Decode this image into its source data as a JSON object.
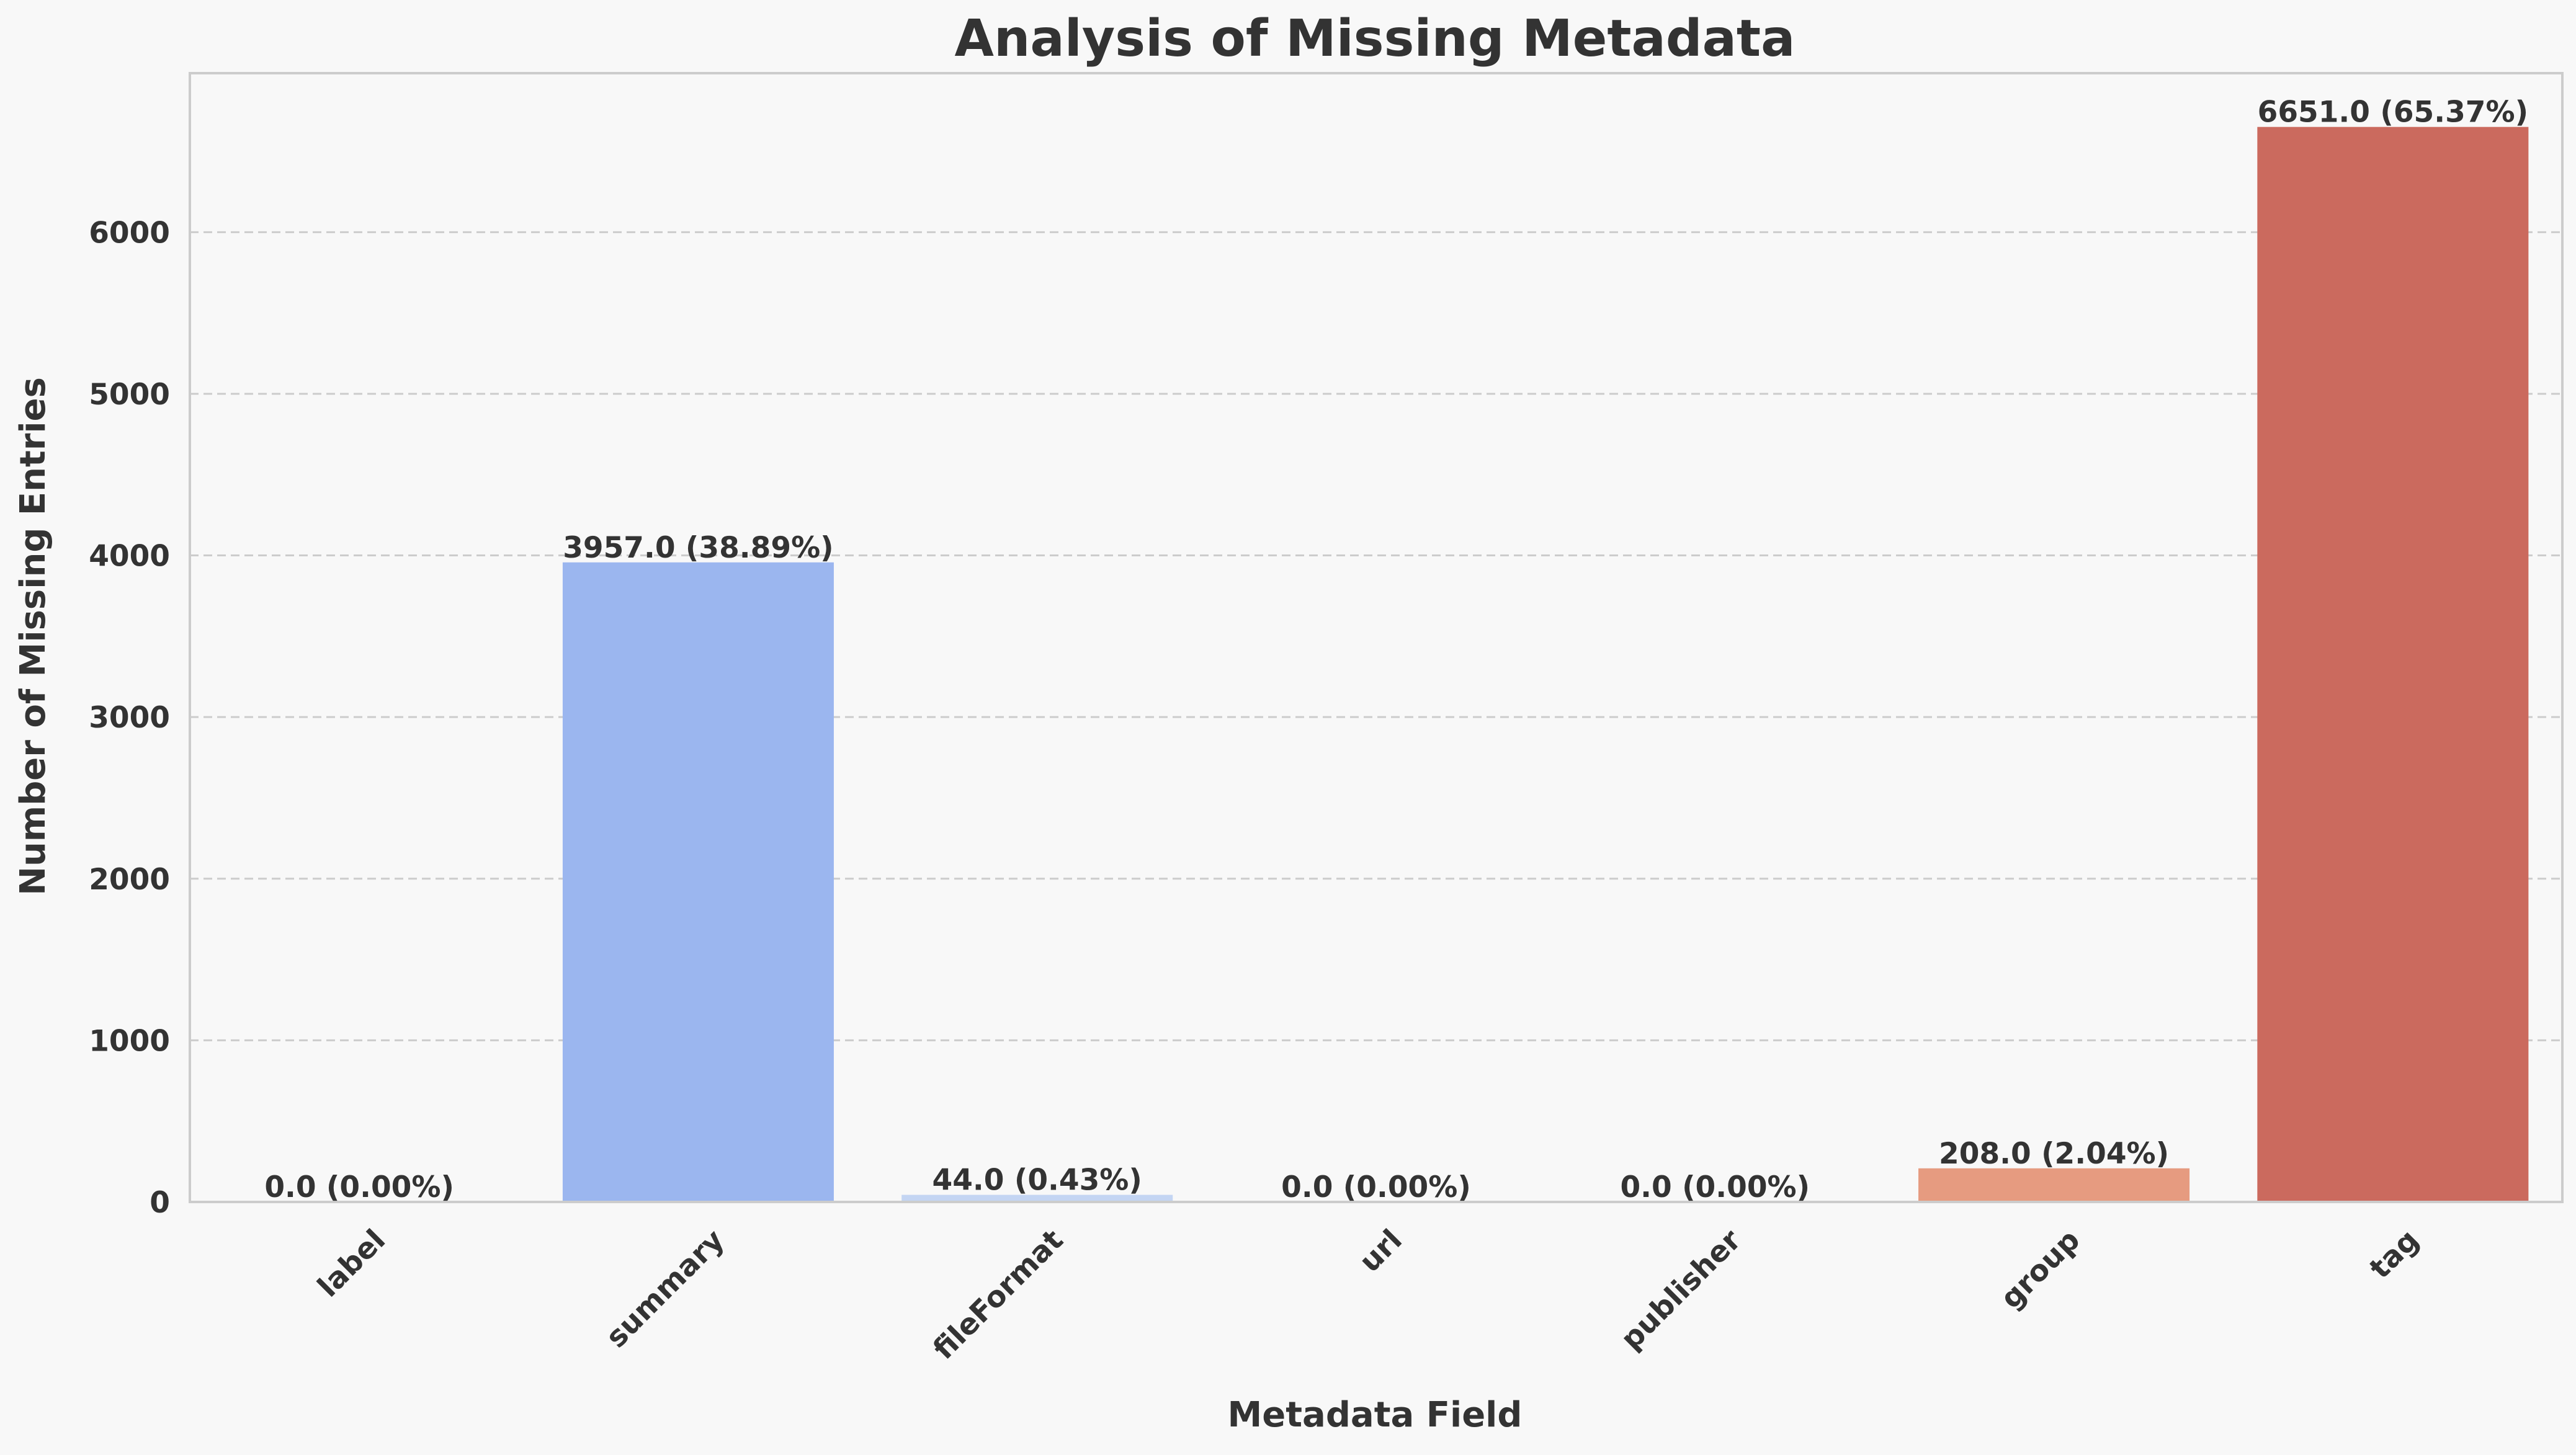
{
  "chart_data": {
    "type": "bar",
    "title": "Analysis of Missing Metadata",
    "xlabel": "Metadata Field",
    "ylabel": "Number of Missing Entries",
    "categories": [
      "label",
      "summary",
      "fileFormat",
      "url",
      "publisher",
      "group",
      "tag"
    ],
    "values": [
      0.0,
      3957.0,
      44.0,
      0.0,
      0.0,
      208.0,
      6651.0
    ],
    "data_labels": [
      "0.0 (0.00%)",
      "3957.0 (38.89%)",
      "44.0 (0.43%)",
      "0.0 (0.00%)",
      "0.0 (0.00%)",
      "208.0 (2.04%)",
      "6651.0 (65.37%)"
    ],
    "colors": [
      "#3b4cc0",
      "#9bb6ef",
      "#c4d5f3",
      "#e6d7cf",
      "#f5c4ac",
      "#e69b80",
      "#cb6a5e"
    ],
    "yticks": [
      0,
      1000,
      2000,
      3000,
      4000,
      5000,
      6000
    ],
    "ylim": [
      0,
      6983.55
    ],
    "grid": "horizontal-dashed",
    "legend": "none"
  }
}
